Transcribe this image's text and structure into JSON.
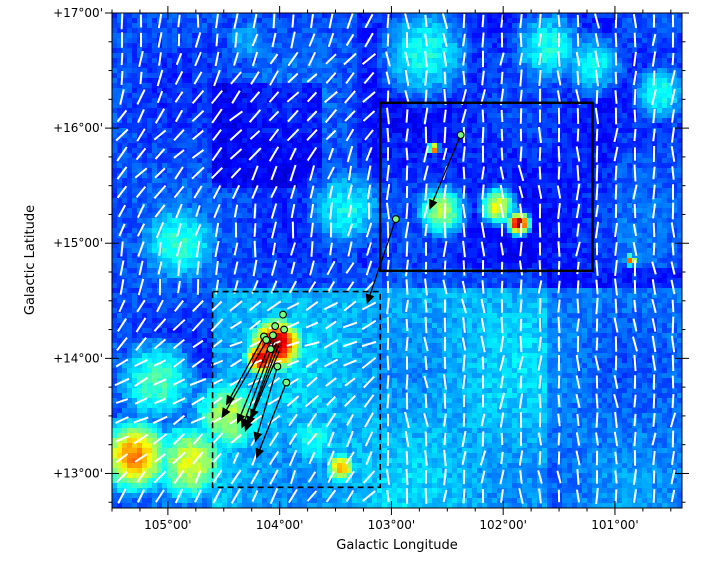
{
  "chart_data": {
    "type": "heatmap",
    "xlabel": "Galactic Longitude",
    "ylabel": "Galactic Latitude",
    "xlim": [
      105.5,
      100.4
    ],
    "ylim": [
      12.7,
      17.0
    ],
    "x_ticks": [
      {
        "value": 105.0,
        "label": "105°00'"
      },
      {
        "value": 104.0,
        "label": "104°00'"
      },
      {
        "value": 103.0,
        "label": "103°00'"
      },
      {
        "value": 102.0,
        "label": "102°00'"
      },
      {
        "value": 101.0,
        "label": "101°00'"
      }
    ],
    "y_ticks": [
      {
        "value": 17.0,
        "label": "+17°00'"
      },
      {
        "value": 16.0,
        "label": "+16°00'"
      },
      {
        "value": 15.0,
        "label": "+15°00'"
      },
      {
        "value": 14.0,
        "label": "+14°00'"
      },
      {
        "value": 13.0,
        "label": "+13°00'"
      }
    ],
    "colormap": [
      "#00008f",
      "#0000ff",
      "#00ffff",
      "#ffff00",
      "#ff0000",
      "#800000"
    ],
    "regions": [
      {
        "style": "solid",
        "l_range": [
          101.2,
          103.1
        ],
        "b_range": [
          14.76,
          16.22
        ]
      },
      {
        "style": "dashed",
        "l_range": [
          103.1,
          104.6
        ],
        "b_range": [
          12.88,
          14.58
        ]
      }
    ],
    "sources": [
      {
        "l": 102.38,
        "b": 15.94
      },
      {
        "l": 102.96,
        "b": 15.21
      },
      {
        "l": 103.97,
        "b": 14.38
      },
      {
        "l": 104.14,
        "b": 14.19
      },
      {
        "l": 104.04,
        "b": 14.28
      },
      {
        "l": 104.06,
        "b": 14.2
      },
      {
        "l": 103.96,
        "b": 14.25
      },
      {
        "l": 104.12,
        "b": 14.16
      },
      {
        "l": 104.08,
        "b": 14.08
      },
      {
        "l": 104.02,
        "b": 13.93
      },
      {
        "l": 103.94,
        "b": 13.79
      }
    ],
    "arrows": [
      {
        "l0": 102.38,
        "b0": 15.94,
        "l1": 102.66,
        "b1": 15.29
      },
      {
        "l0": 102.96,
        "b0": 15.21,
        "l1": 103.22,
        "b1": 14.47
      },
      {
        "l0": 104.14,
        "b0": 14.19,
        "l1": 104.48,
        "b1": 13.59
      },
      {
        "l0": 104.1,
        "b0": 14.18,
        "l1": 104.52,
        "b1": 13.48
      },
      {
        "l0": 104.07,
        "b0": 14.17,
        "l1": 104.38,
        "b1": 13.43
      },
      {
        "l0": 104.05,
        "b0": 14.15,
        "l1": 104.34,
        "b1": 13.39
      },
      {
        "l0": 104.03,
        "b0": 14.13,
        "l1": 104.31,
        "b1": 13.36
      },
      {
        "l0": 104.01,
        "b0": 14.11,
        "l1": 104.29,
        "b1": 13.41
      },
      {
        "l0": 104.0,
        "b0": 14.07,
        "l1": 104.26,
        "b1": 13.47
      },
      {
        "l0": 104.02,
        "b0": 13.93,
        "l1": 104.22,
        "b1": 13.27
      },
      {
        "l0": 103.94,
        "b0": 13.79,
        "l1": 104.21,
        "b1": 13.13
      }
    ],
    "hotspots": [
      {
        "l": 104.03,
        "b": 14.12,
        "radius": 0.24,
        "value": 1.0
      },
      {
        "l": 104.16,
        "b": 14.0,
        "radius": 0.16,
        "value": 0.95
      },
      {
        "l": 101.86,
        "b": 15.17,
        "radius": 0.1,
        "value": 1.0
      },
      {
        "l": 102.05,
        "b": 15.32,
        "radius": 0.18,
        "value": 0.62
      },
      {
        "l": 102.55,
        "b": 15.28,
        "radius": 0.25,
        "value": 0.55
      },
      {
        "l": 105.3,
        "b": 13.15,
        "radius": 0.35,
        "value": 0.75
      },
      {
        "l": 104.8,
        "b": 13.1,
        "radius": 0.4,
        "value": 0.6
      },
      {
        "l": 104.45,
        "b": 13.5,
        "radius": 0.4,
        "value": 0.55
      },
      {
        "l": 105.1,
        "b": 13.8,
        "radius": 0.45,
        "value": 0.45
      },
      {
        "l": 103.7,
        "b": 13.3,
        "radius": 0.35,
        "value": 0.4
      },
      {
        "l": 103.45,
        "b": 13.05,
        "radius": 0.15,
        "value": 0.7
      },
      {
        "l": 104.9,
        "b": 15.0,
        "radius": 0.45,
        "value": 0.42
      },
      {
        "l": 103.4,
        "b": 15.3,
        "radius": 0.45,
        "value": 0.38
      },
      {
        "l": 102.7,
        "b": 16.65,
        "radius": 0.5,
        "value": 0.4
      },
      {
        "l": 101.6,
        "b": 16.7,
        "radius": 0.4,
        "value": 0.4
      },
      {
        "l": 101.2,
        "b": 16.55,
        "radius": 0.35,
        "value": 0.38
      },
      {
        "l": 100.6,
        "b": 16.3,
        "radius": 0.3,
        "value": 0.4
      },
      {
        "l": 104.3,
        "b": 16.75,
        "radius": 0.3,
        "value": 0.3
      },
      {
        "l": 103.0,
        "b": 13.7,
        "radius": 0.4,
        "value": 0.28
      },
      {
        "l": 102.62,
        "b": 15.82,
        "radius": 0.05,
        "value": 0.85
      },
      {
        "l": 100.86,
        "b": 14.85,
        "radius": 0.05,
        "value": 0.85
      }
    ]
  }
}
